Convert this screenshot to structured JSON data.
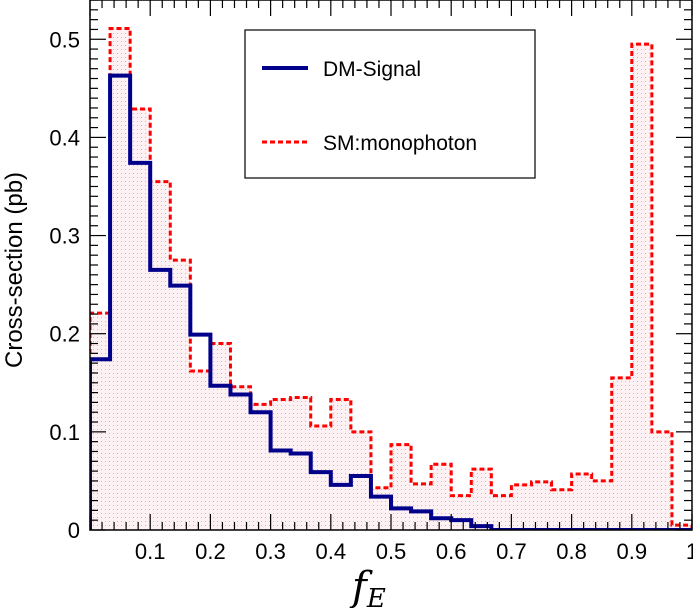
{
  "chart_data": {
    "type": "histogram",
    "xlabel": "f",
    "xlabel_subscript": "E",
    "ylabel": "Cross-section (pb)",
    "xlim": [
      0,
      1
    ],
    "ylim": [
      0,
      0.54
    ],
    "x_ticks": [
      0.1,
      0.2,
      0.3,
      0.4,
      0.5,
      0.6,
      0.7,
      0.8,
      0.9,
      1
    ],
    "x_tick_labels": [
      "0.1",
      "0.2",
      "0.3",
      "0.4",
      "0.5",
      "0.6",
      "0.7",
      "0.8",
      "0.9",
      "1"
    ],
    "y_ticks": [
      0,
      0.1,
      0.2,
      0.3,
      0.4,
      0.5
    ],
    "y_tick_labels": [
      "0",
      "0.1",
      "0.2",
      "0.3",
      "0.4",
      "0.5"
    ],
    "bin_width": 0.0333,
    "grid": false,
    "legend_position": "top-right",
    "series": [
      {
        "name": "DM-Signal",
        "color": "#00008b",
        "style": "solid",
        "values": [
          0.174,
          0.463,
          0.374,
          0.265,
          0.249,
          0.199,
          0.147,
          0.138,
          0.12,
          0.081,
          0.078,
          0.059,
          0.046,
          0.055,
          0.034,
          0.022,
          0.019,
          0.012,
          0.01,
          0.004,
          0,
          0,
          0,
          0,
          0,
          0,
          0,
          0,
          0,
          0
        ]
      },
      {
        "name": "SM:monophoton",
        "color": "#ff0000",
        "style": "dashed",
        "fill": "#fbe9ec",
        "values": [
          0.221,
          0.511,
          0.429,
          0.355,
          0.275,
          0.162,
          0.19,
          0.146,
          0.128,
          0.133,
          0.135,
          0.106,
          0.133,
          0.1,
          0.043,
          0.087,
          0.047,
          0.067,
          0.035,
          0.062,
          0.035,
          0.046,
          0.049,
          0.041,
          0.057,
          0.05,
          0.155,
          0.495,
          0.1,
          0.005
        ]
      }
    ]
  }
}
